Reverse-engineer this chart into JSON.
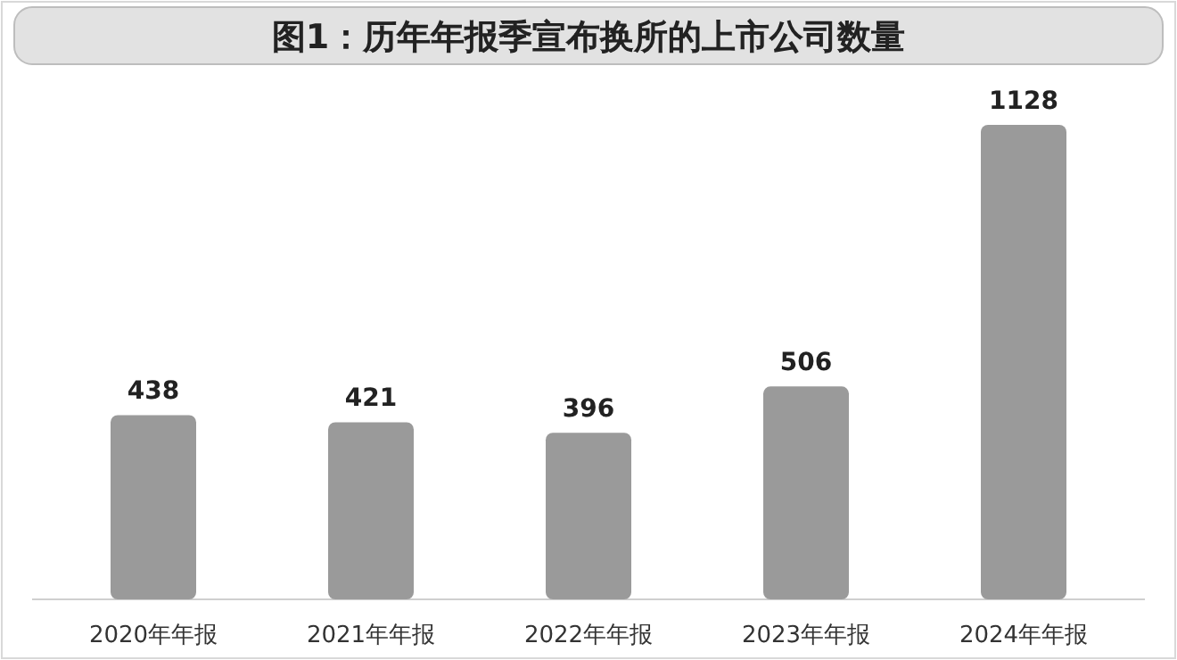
{
  "chart_data": {
    "type": "bar",
    "title": "图1：历年年报季宣布换所的上市公司数量",
    "categories": [
      "2020年年报",
      "2021年年报",
      "2022年年报",
      "2023年年报",
      "2024年年报"
    ],
    "values": [
      438,
      421,
      396,
      506,
      1128
    ],
    "color": "#9a9a9a",
    "data_labels": true
  }
}
